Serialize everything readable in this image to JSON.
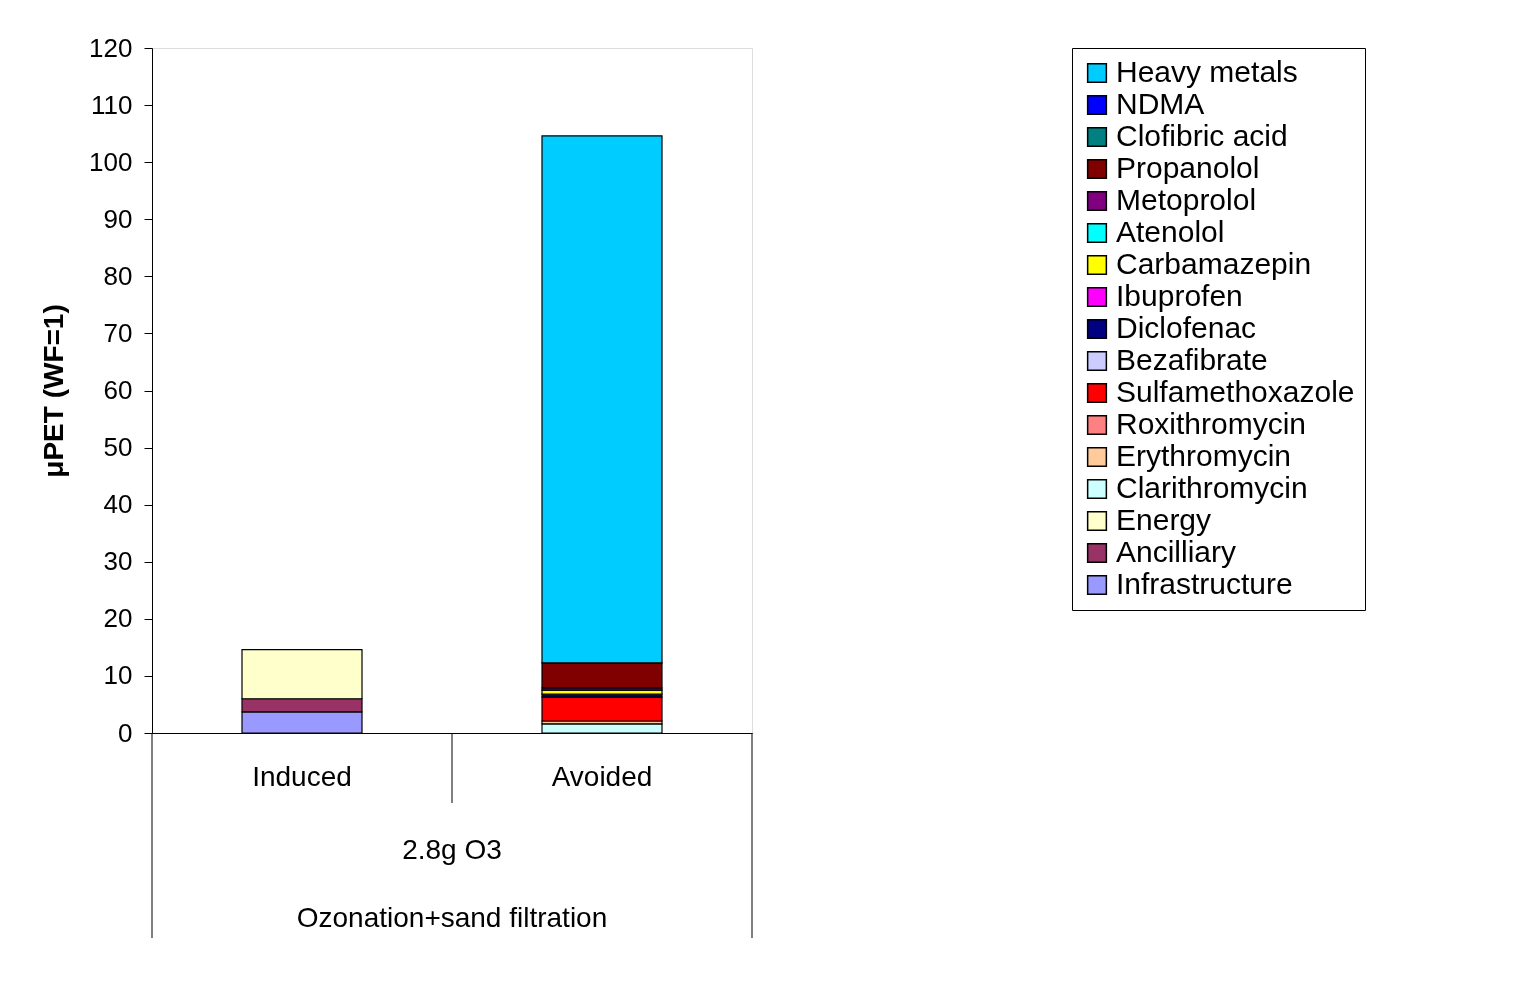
{
  "chart_data": {
    "type": "bar",
    "stacked": true,
    "ylabel": "μPET (WF=1)",
    "categories": [
      "Induced",
      "Avoided"
    ],
    "annotations": [
      "2.8g O3",
      "Ozonation+sand filtration"
    ],
    "ylim": [
      0,
      120
    ],
    "yticks": [
      0,
      10,
      20,
      30,
      40,
      50,
      60,
      70,
      80,
      90,
      100,
      110,
      120
    ],
    "grid": false,
    "legend": "right",
    "series": [
      {
        "name": "Infrastructure",
        "color": "#9999ff",
        "values": [
          3.7,
          null
        ]
      },
      {
        "name": "Ancilliary",
        "color": "#993366",
        "values": [
          2.3,
          null
        ]
      },
      {
        "name": "Energy",
        "color": "#ffffcc",
        "values": [
          8.6,
          null
        ]
      },
      {
        "name": "Clarithromycin",
        "color": "#ccffff",
        "values": [
          null,
          1.6
        ]
      },
      {
        "name": "Erythromycin",
        "color": "#ffcc99",
        "values": [
          null,
          0.5
        ]
      },
      {
        "name": "Roxithromycin",
        "color": "#ff8080",
        "values": [
          null,
          null
        ]
      },
      {
        "name": "Sulfamethoxazole",
        "color": "#ff0000",
        "values": [
          null,
          4.2
        ]
      },
      {
        "name": "Bezafibrate",
        "color": "#ccccff",
        "values": [
          null,
          null
        ]
      },
      {
        "name": "Diclofenac",
        "color": "#000080",
        "values": [
          null,
          0.5
        ]
      },
      {
        "name": "Ibuprofen",
        "color": "#ff00ff",
        "values": [
          null,
          null
        ]
      },
      {
        "name": "Carbamazepin",
        "color": "#ffff00",
        "values": [
          null,
          0.7
        ]
      },
      {
        "name": "Atenolol",
        "color": "#00ffff",
        "values": [
          null,
          null
        ]
      },
      {
        "name": "Metoprolol",
        "color": "#800080",
        "values": [
          null,
          0.4
        ]
      },
      {
        "name": "Propanolol",
        "color": "#800000",
        "values": [
          null,
          4.4
        ]
      },
      {
        "name": "Clofibric acid",
        "color": "#008080",
        "values": [
          null,
          null
        ]
      },
      {
        "name": "NDMA",
        "color": "#0000ff",
        "values": [
          null,
          null
        ]
      },
      {
        "name": "Heavy metals",
        "color": "#00ccff",
        "values": [
          null,
          92.3
        ]
      }
    ]
  }
}
